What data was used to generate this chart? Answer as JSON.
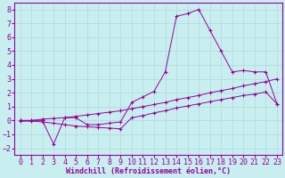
{
  "xlabel": "Windchill (Refroidissement éolien,°C)",
  "bg_color": "#c8eef0",
  "line_color": "#990099",
  "grid_color": "#b0d8da",
  "xlim": [
    -0.5,
    23.5
  ],
  "ylim": [
    -2.5,
    8.5
  ],
  "yticks": [
    -2,
    -1,
    0,
    1,
    2,
    3,
    4,
    5,
    6,
    7,
    8
  ],
  "xticks": [
    0,
    1,
    2,
    3,
    4,
    5,
    6,
    7,
    8,
    9,
    10,
    11,
    12,
    13,
    14,
    15,
    16,
    17,
    18,
    19,
    20,
    21,
    22,
    23
  ],
  "line1_x": [
    0,
    1,
    2,
    3,
    4,
    5,
    6,
    7,
    8,
    9,
    10,
    11,
    12,
    13,
    14,
    15,
    16,
    17,
    18,
    19,
    20,
    21,
    22,
    23
  ],
  "line1_y": [
    0.0,
    0.0,
    0.0,
    -1.7,
    0.2,
    0.2,
    -0.3,
    -0.3,
    -0.2,
    -0.1,
    1.3,
    1.7,
    2.1,
    3.5,
    7.5,
    7.7,
    8.0,
    6.5,
    5.0,
    3.5,
    3.6,
    3.5,
    3.5,
    1.2
  ],
  "line2_x": [
    0,
    1,
    2,
    3,
    4,
    5,
    6,
    7,
    8,
    9,
    10,
    11,
    12,
    13,
    14,
    15,
    16,
    17,
    18,
    19,
    20,
    21,
    22,
    23
  ],
  "line2_y": [
    0.0,
    0.0,
    0.1,
    0.15,
    0.2,
    0.3,
    0.4,
    0.5,
    0.6,
    0.7,
    0.85,
    1.0,
    1.15,
    1.3,
    1.5,
    1.65,
    1.8,
    2.0,
    2.15,
    2.3,
    2.5,
    2.65,
    2.8,
    3.0
  ],
  "line3_x": [
    0,
    1,
    2,
    3,
    4,
    5,
    6,
    7,
    8,
    9,
    10,
    11,
    12,
    13,
    14,
    15,
    16,
    17,
    18,
    19,
    20,
    21,
    22,
    23
  ],
  "line3_y": [
    -0.05,
    -0.05,
    -0.1,
    -0.2,
    -0.3,
    -0.4,
    -0.45,
    -0.5,
    -0.55,
    -0.6,
    0.2,
    0.35,
    0.55,
    0.7,
    0.9,
    1.05,
    1.2,
    1.35,
    1.5,
    1.65,
    1.8,
    1.9,
    2.05,
    1.2
  ],
  "xlabel_fontsize": 6,
  "tick_fontsize": 6
}
